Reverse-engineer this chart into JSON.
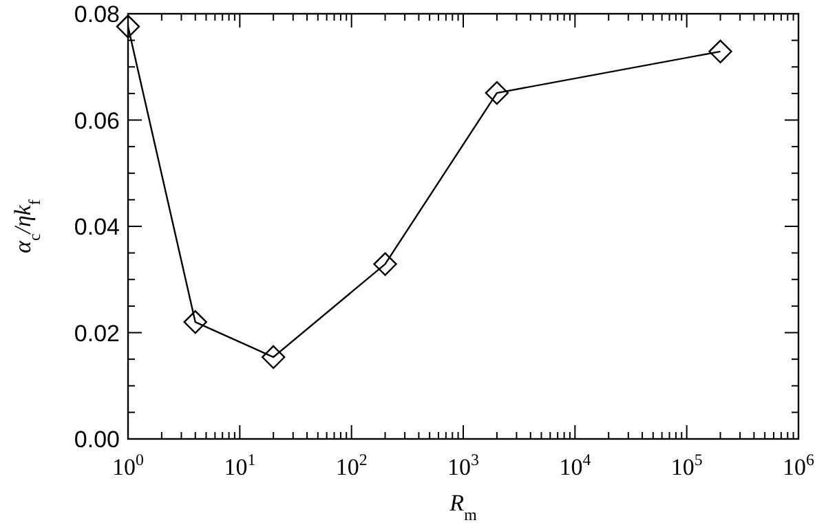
{
  "chart_data": {
    "type": "line",
    "xlabel": "R$_{m}$",
    "ylabel": "α$_{c}$/ηk$_{f}$",
    "x": [
      1,
      4,
      20,
      200,
      2000,
      200000
    ],
    "series": [
      {
        "color": "#000000",
        "values": [
          0.0776,
          0.022,
          0.0154,
          0.0329,
          0.0651,
          0.0729
        ]
      }
    ],
    "log": "x",
    "xlim": [
      1,
      1000000
    ],
    "xticks": [
      {
        "value": 1,
        "label": "10$^{0}$"
      },
      {
        "value": 10,
        "label": "10$^{1}$"
      },
      {
        "value": 100,
        "label": "10$^{2}$"
      },
      {
        "value": 1000,
        "label": "10$^{3}$"
      },
      {
        "value": 10000,
        "label": "10$^{4}$"
      },
      {
        "value": 100000,
        "label": "10$^{5}$"
      },
      {
        "value": 1000000,
        "label": "10$^{6}$"
      }
    ],
    "ylim": [
      0,
      0.08
    ],
    "yticks": [
      {
        "value": 0,
        "label": "0.00"
      },
      {
        "value": 0.02,
        "label": "0.02"
      },
      {
        "value": 0.04,
        "label": "0.04"
      },
      {
        "value": 0.06,
        "label": "0.06"
      },
      {
        "value": 0.08,
        "label": "0.08"
      }
    ],
    "marker": "diamond",
    "line_style": "solid"
  }
}
